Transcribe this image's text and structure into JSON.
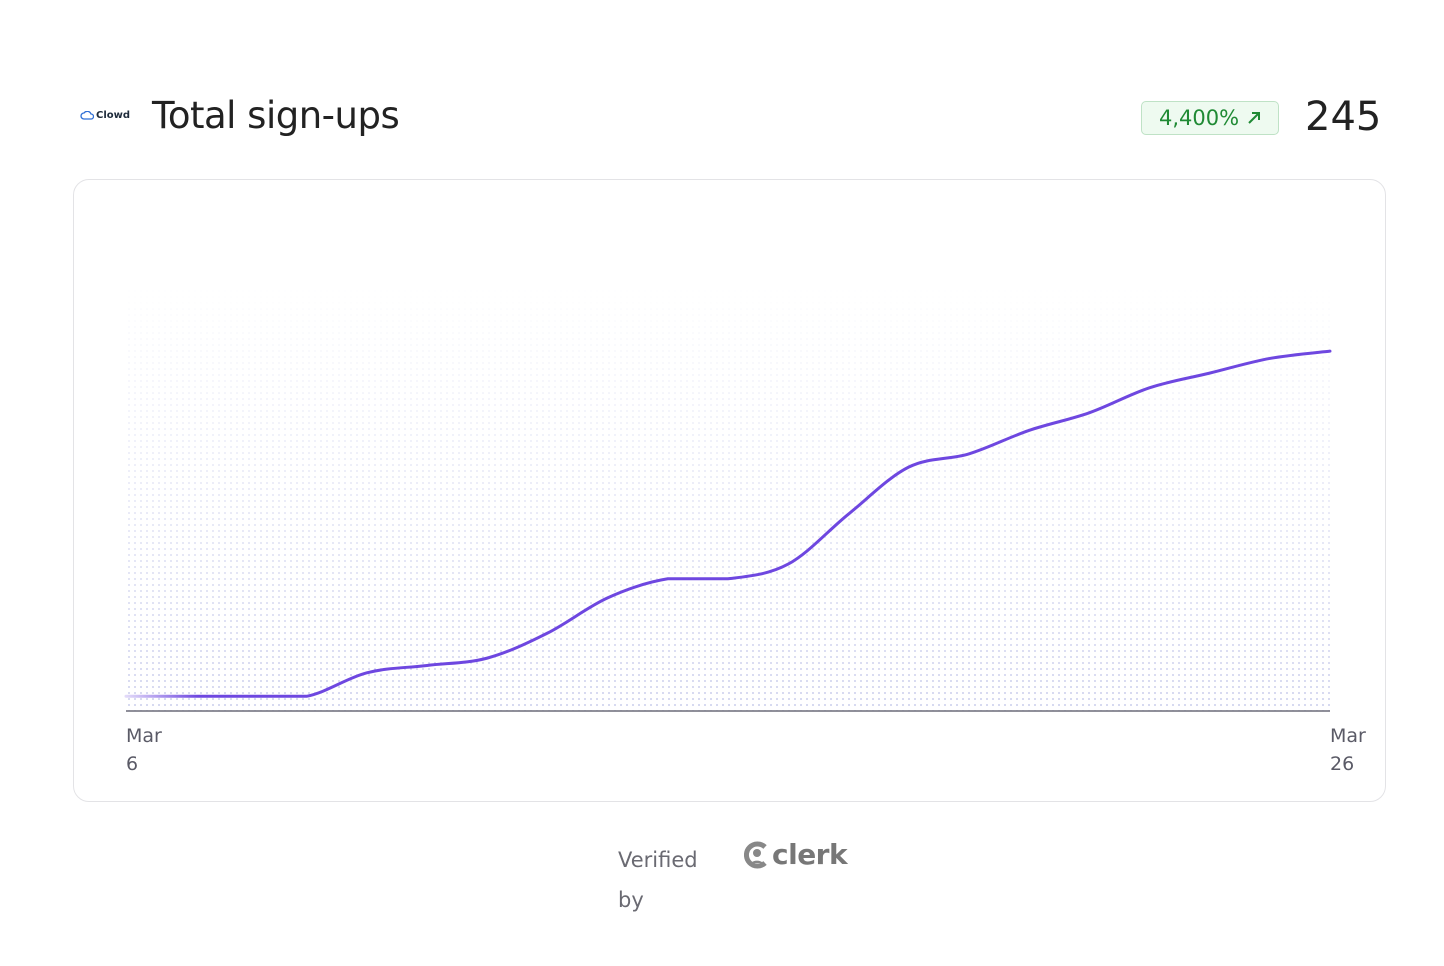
{
  "header": {
    "logo": "Clowd",
    "title": "Total sign-ups",
    "change": "4,400%",
    "total": "245"
  },
  "chart_data": {
    "type": "line",
    "categories": [
      "Mar 6",
      null,
      null,
      null,
      null,
      null,
      null,
      null,
      null,
      null,
      null,
      null,
      null,
      null,
      null,
      null,
      null,
      null,
      null,
      null,
      "Mar 26"
    ],
    "values": [
      10,
      10,
      10,
      10,
      26,
      31,
      36,
      53,
      77,
      90,
      90,
      100,
      134,
      166,
      175,
      191,
      203,
      220,
      230,
      240,
      245
    ],
    "color": "#6e47e0",
    "ylim": [
      0,
      290
    ]
  },
  "footer": {
    "verified": "Verified by",
    "brand": "clerk"
  }
}
